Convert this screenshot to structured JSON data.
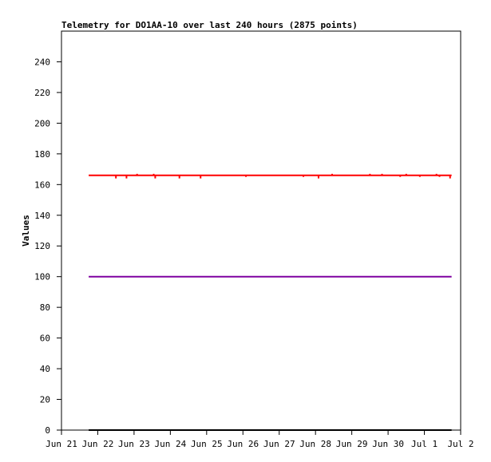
{
  "chart_data": {
    "type": "line",
    "title": "Telemetry for DO1AA-10 over last 240 hours (2875 points)",
    "xlabel": "",
    "ylabel": "Values",
    "ylim": [
      0,
      260
    ],
    "yticks": [
      0,
      20,
      40,
      60,
      80,
      100,
      120,
      140,
      160,
      180,
      200,
      220,
      240
    ],
    "xlim": [
      "2021-06-21",
      "2021-07-02"
    ],
    "xticks": [
      {
        "date": "2021-06-21",
        "label": "Jun 21"
      },
      {
        "date": "2021-06-22",
        "label": "Jun 22"
      },
      {
        "date": "2021-06-23",
        "label": "Jun 23"
      },
      {
        "date": "2021-06-24",
        "label": "Jun 24"
      },
      {
        "date": "2021-06-25",
        "label": "Jun 25"
      },
      {
        "date": "2021-06-26",
        "label": "Jun 26"
      },
      {
        "date": "2021-06-27",
        "label": "Jun 27"
      },
      {
        "date": "2021-06-28",
        "label": "Jun 28"
      },
      {
        "date": "2021-06-29",
        "label": "Jun 29"
      },
      {
        "date": "2021-06-30",
        "label": "Jun 30"
      },
      {
        "date": "2021-07-01",
        "label": "Jul 1"
      },
      {
        "date": "2021-07-02",
        "label": "Jul 2"
      }
    ],
    "grid": false,
    "legend": "none",
    "series": [
      {
        "color": "#ff0000",
        "x": [
          "2021-06-21 18:00",
          "2021-07-01 18:00"
        ],
        "y": [
          166,
          166
        ],
        "dips": [
          {
            "x": "2021-06-22 12:00",
            "y": 164
          },
          {
            "x": "2021-06-22 19:00",
            "y": 164
          },
          {
            "x": "2021-06-23 14:00",
            "y": 164
          },
          {
            "x": "2021-06-24 06:00",
            "y": 164
          },
          {
            "x": "2021-06-24 20:00",
            "y": 164
          },
          {
            "x": "2021-06-26 02:00",
            "y": 165
          },
          {
            "x": "2021-06-27 16:00",
            "y": 165
          },
          {
            "x": "2021-06-28 02:00",
            "y": 164
          },
          {
            "x": "2021-06-30 08:00",
            "y": 165
          },
          {
            "x": "2021-06-30 21:00",
            "y": 165
          },
          {
            "x": "2021-07-01 10:00",
            "y": 165
          },
          {
            "x": "2021-07-01 17:00",
            "y": 164
          }
        ],
        "spikes": [
          {
            "x": "2021-06-23 02:00",
            "y": 167
          },
          {
            "x": "2021-06-23 13:00",
            "y": 167
          },
          {
            "x": "2021-06-28 11:00",
            "y": 167
          },
          {
            "x": "2021-06-29 12:00",
            "y": 167
          },
          {
            "x": "2021-06-29 20:00",
            "y": 167
          },
          {
            "x": "2021-06-30 12:00",
            "y": 167
          },
          {
            "x": "2021-07-01 08:00",
            "y": 167
          }
        ]
      },
      {
        "color": "#7f00a0",
        "x": [
          "2021-06-21 18:00",
          "2021-07-01 18:00"
        ],
        "y": [
          100,
          100
        ]
      },
      {
        "color": "#000000",
        "x": [
          "2021-06-21 18:00",
          "2021-07-01 18:00"
        ],
        "y": [
          0,
          0
        ]
      }
    ]
  }
}
